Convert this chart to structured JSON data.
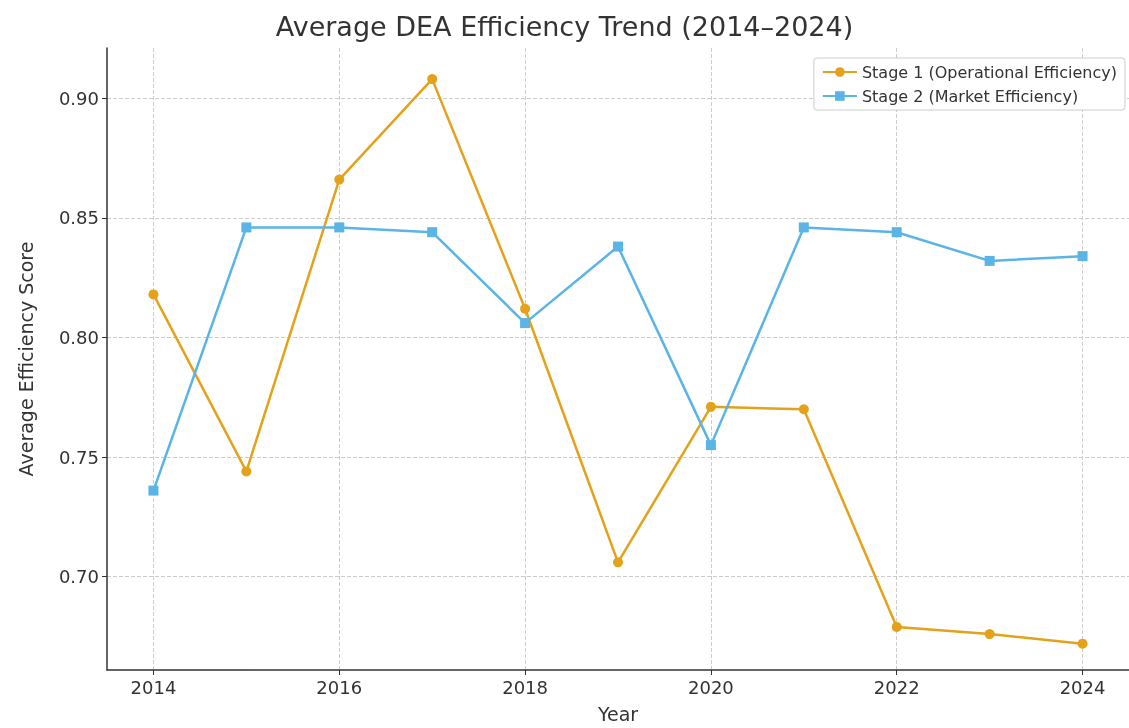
{
  "chart_data": {
    "type": "line",
    "title": "Average DEA Efficiency Trend (2014–2024)",
    "xlabel": "Year",
    "ylabel": "Average Efficiency Score",
    "x": [
      2014,
      2015,
      2016,
      2017,
      2018,
      2019,
      2020,
      2021,
      2022,
      2023,
      2024
    ],
    "series": [
      {
        "name": "Stage 1 (Operational Efficiency)",
        "color": "#e3a21a",
        "marker": "circle",
        "values": [
          0.818,
          0.744,
          0.866,
          0.908,
          0.812,
          0.706,
          0.771,
          0.77,
          0.679,
          0.676,
          0.672
        ]
      },
      {
        "name": "Stage 2 (Market Efficiency)",
        "color": "#5ab4e5",
        "marker": "square",
        "values": [
          0.736,
          0.846,
          0.846,
          0.844,
          0.806,
          0.838,
          0.755,
          0.846,
          0.844,
          0.832,
          0.834
        ]
      }
    ],
    "xlim": [
      2013.5,
      2024.5
    ],
    "xticks": [
      2014,
      2016,
      2018,
      2020,
      2022,
      2024
    ],
    "ylim": [
      0.661,
      0.921
    ],
    "yticks": [
      {
        "value": 0.7,
        "label": "0.70"
      },
      {
        "value": 0.75,
        "label": "0.75"
      },
      {
        "value": 0.8,
        "label": "0.80"
      },
      {
        "value": 0.85,
        "label": "0.85"
      },
      {
        "value": 0.9,
        "label": "0.90"
      }
    ],
    "grid": true,
    "legend": "top right",
    "line_style": "solid"
  }
}
